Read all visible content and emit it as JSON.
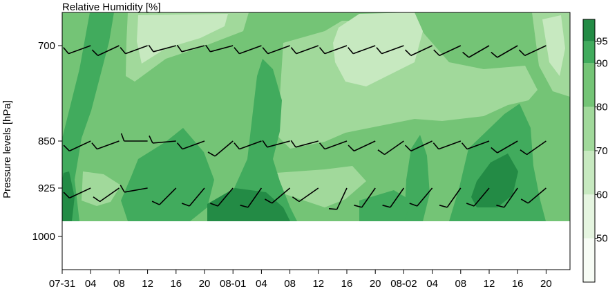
{
  "chart_data": {
    "type": "heatmap",
    "title": "Relative Humidity [%]",
    "ylabel": "Pressure levels [hPa]",
    "y_levels": [
      700,
      850,
      925,
      1000
    ],
    "y_tick_labels": [
      "700",
      "850",
      "925",
      "1000"
    ],
    "x_tick_labels": [
      "07-31",
      "04",
      "08",
      "12",
      "16",
      "20",
      "08-01",
      "04",
      "08",
      "12",
      "16",
      "20",
      "08-02",
      "04",
      "08",
      "12",
      "16",
      "20"
    ],
    "x_hours": [
      0,
      4,
      8,
      12,
      16,
      20,
      24,
      28,
      32,
      36,
      40,
      44,
      48,
      52,
      56,
      60,
      64,
      68
    ],
    "colorbar": {
      "ticks": [
        "50",
        "60",
        "70",
        "80",
        "90",
        "95"
      ],
      "levels": [
        40,
        50,
        60,
        70,
        80,
        90,
        95,
        100
      ],
      "colors": [
        "#f7fcf5",
        "#e5f5e0",
        "#c7e9c0",
        "#a1d99b",
        "#74c476",
        "#41ab5d",
        "#238b45"
      ]
    },
    "wind_barbs": {
      "levels": [
        700,
        850,
        925
      ],
      "hours": [
        0,
        4,
        8,
        12,
        16,
        20,
        24,
        28,
        32,
        36,
        40,
        44,
        48,
        52,
        56,
        60,
        64,
        68
      ],
      "direction_deg": [
        [
          250,
          250,
          245,
          250,
          255,
          255,
          255,
          250,
          250,
          250,
          250,
          250,
          250,
          245,
          245,
          240,
          240,
          245
        ],
        [
          260,
          245,
          250,
          270,
          265,
          250,
          230,
          250,
          255,
          255,
          250,
          245,
          235,
          245,
          250,
          250,
          240,
          235
        ],
        [
          250,
          245,
          235,
          260,
          225,
          220,
          220,
          215,
          230,
          235,
          205,
          215,
          215,
          220,
          215,
          220,
          215,
          230
        ]
      ]
    }
  }
}
